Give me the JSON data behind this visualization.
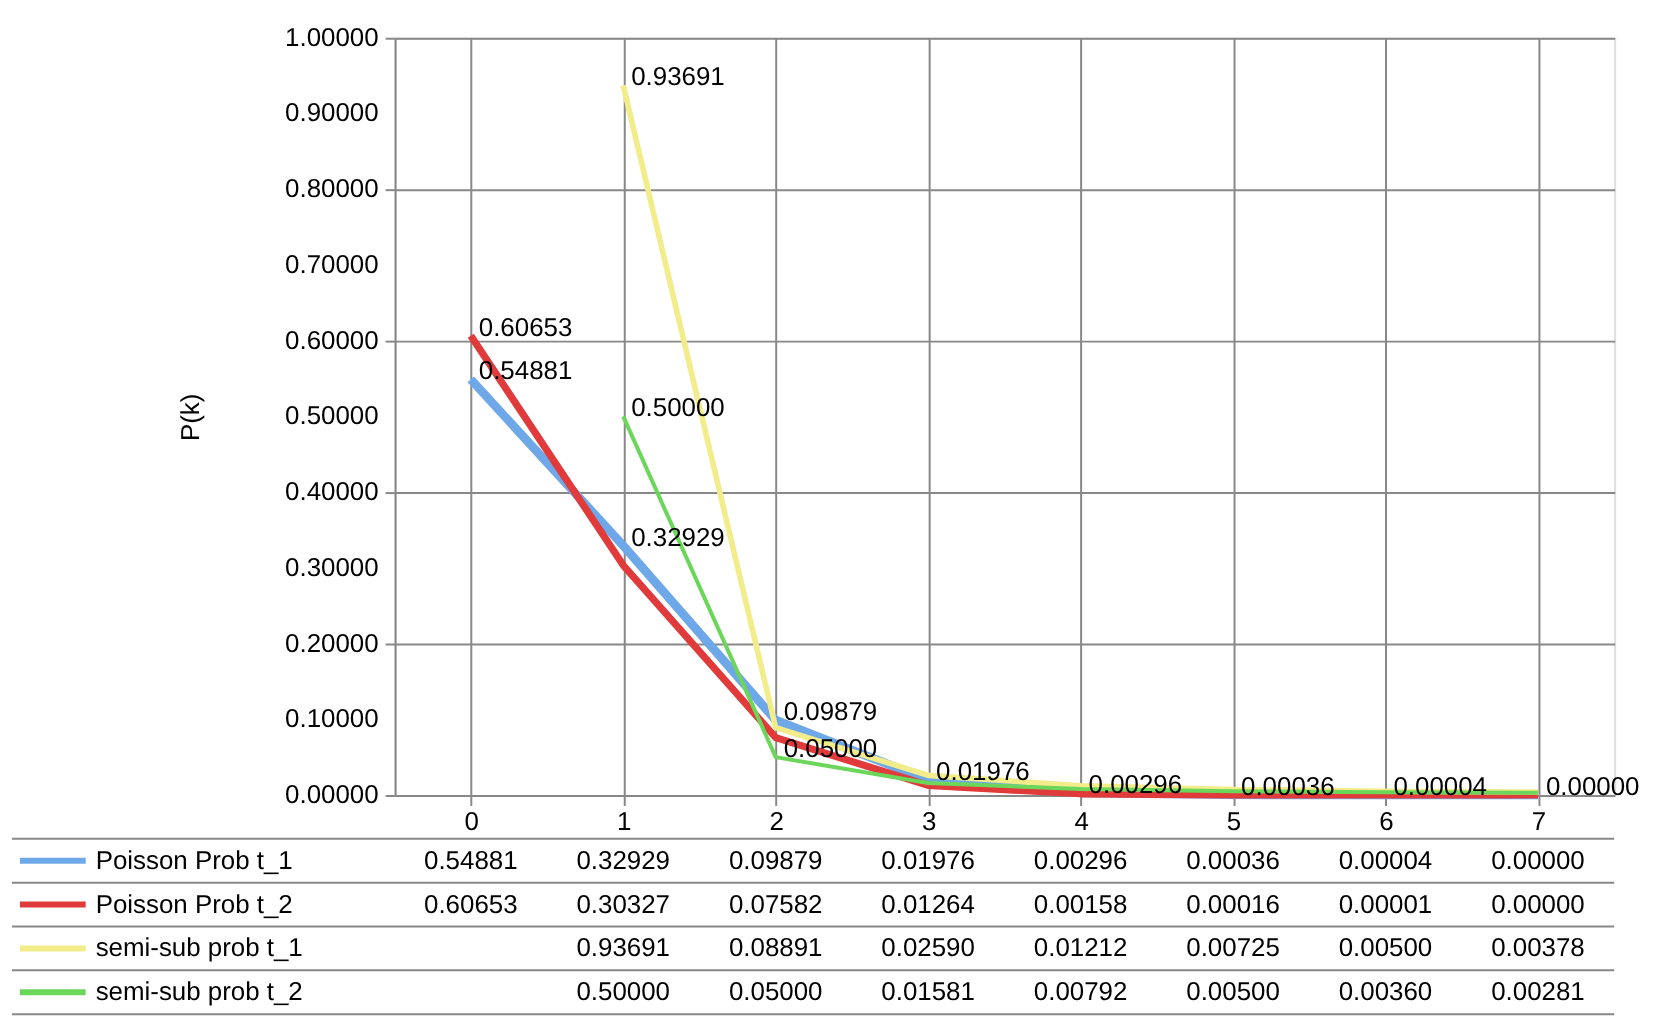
{
  "chart_data": {
    "type": "line",
    "ylabel": "P(k)",
    "categories": [
      "0",
      "1",
      "2",
      "3",
      "4",
      "5",
      "6",
      "7"
    ],
    "ylim": [
      0,
      1
    ],
    "yticks": [
      {
        "value": 0,
        "label": "0.00000"
      },
      {
        "value": 0.1,
        "label": "0.10000"
      },
      {
        "value": 0.2,
        "label": "0.20000"
      },
      {
        "value": 0.3,
        "label": "0.30000"
      },
      {
        "value": 0.4,
        "label": "0.40000"
      },
      {
        "value": 0.5,
        "label": "0.50000"
      },
      {
        "value": 0.6,
        "label": "0.60000"
      },
      {
        "value": 0.7,
        "label": "0.70000"
      },
      {
        "value": 0.8,
        "label": "0.80000"
      },
      {
        "value": 0.9,
        "label": "0.90000"
      },
      {
        "value": 1,
        "label": "1.00000"
      }
    ],
    "grid": true,
    "legend": "bottom",
    "marker": "none",
    "line_style": "solid",
    "series": [
      {
        "name": "Poisson Prob t_1",
        "color": "#6fa8e8",
        "values": [
          0.54881,
          0.32929,
          0.09879,
          0.01976,
          0.00296,
          0.00036,
          4e-05,
          0.0
        ],
        "value_labels": [
          "0.54881",
          "0.32929",
          "0.09879",
          "0.01976",
          "0.00296",
          "0.00036",
          "0.00004",
          "0.00000"
        ]
      },
      {
        "name": "Poisson Prob t_2",
        "color": "#e03a3a",
        "values": [
          0.60653,
          0.30327,
          0.07582,
          0.01264,
          0.00158,
          0.00016,
          1e-05,
          0.0
        ],
        "value_labels": [
          "0.60653",
          "0.30327",
          "0.07582",
          "0.01264",
          "0.00158",
          "0.00016",
          "0.00001",
          "0.00000"
        ]
      },
      {
        "name": "semi-sub prob t_1",
        "color": "#f2ec8a",
        "values": [
          null,
          0.93691,
          0.08891,
          0.0259,
          0.01212,
          0.00725,
          0.005,
          0.00378
        ],
        "value_labels": [
          null,
          "0.93691",
          "0.08891",
          "0.02590",
          "0.01212",
          "0.00725",
          "0.00500",
          "0.00378"
        ]
      },
      {
        "name": "semi-sub prob t_2",
        "color": "#6bd65a",
        "values": [
          null,
          0.5,
          0.05,
          0.01581,
          0.00792,
          0.005,
          0.0036,
          0.00281
        ],
        "value_labels": [
          null,
          "0.50000",
          "0.05000",
          "0.01581",
          "0.00792",
          "0.00500",
          "0.00360",
          "0.00281"
        ]
      }
    ]
  }
}
